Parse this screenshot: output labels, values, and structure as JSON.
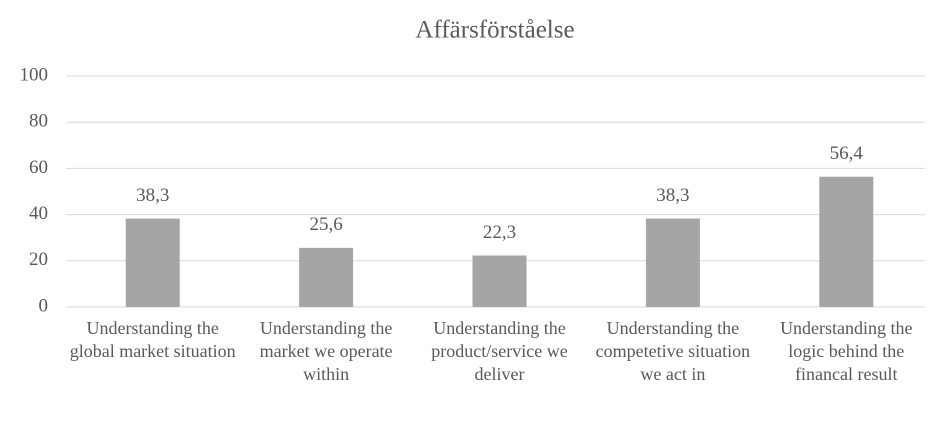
{
  "chart_data": {
    "type": "bar",
    "title": "Affärsförståelse",
    "categories": [
      "Understanding the global market situation",
      "Understanding the market we operate within",
      "Understanding the product/service we deliver",
      "Understanding the competetive situation we act in",
      "Understanding the logic behind the financal result"
    ],
    "values": [
      38.3,
      25.6,
      22.3,
      38.3,
      56.4
    ],
    "value_labels": [
      "38,3",
      "25,6",
      "22,3",
      "38,3",
      "56,4"
    ],
    "color": "#a5a5a5",
    "ylim": [
      0,
      100
    ],
    "yticks": [
      0,
      20,
      40,
      60,
      80,
      100
    ],
    "grid": true
  }
}
